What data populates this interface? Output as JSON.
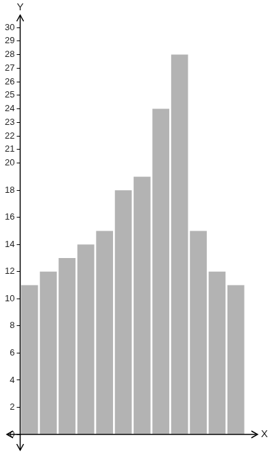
{
  "chart_data": {
    "type": "bar",
    "x_label": "X",
    "y_label": "Y",
    "categories": [
      null,
      null,
      null,
      null,
      null,
      null,
      null,
      null,
      null,
      null,
      null,
      null
    ],
    "values": [
      11,
      12,
      13,
      14,
      15,
      18,
      19,
      24,
      28,
      15,
      12,
      11
    ],
    "color": "#b3b3b3",
    "ylim": [
      0,
      30
    ],
    "yticks": [
      0,
      2,
      4,
      6,
      8,
      10,
      12,
      14,
      16,
      18,
      20,
      21,
      22,
      23,
      24,
      25,
      26,
      27,
      28,
      29,
      30
    ],
    "grid": false,
    "tick_labels": "y"
  }
}
